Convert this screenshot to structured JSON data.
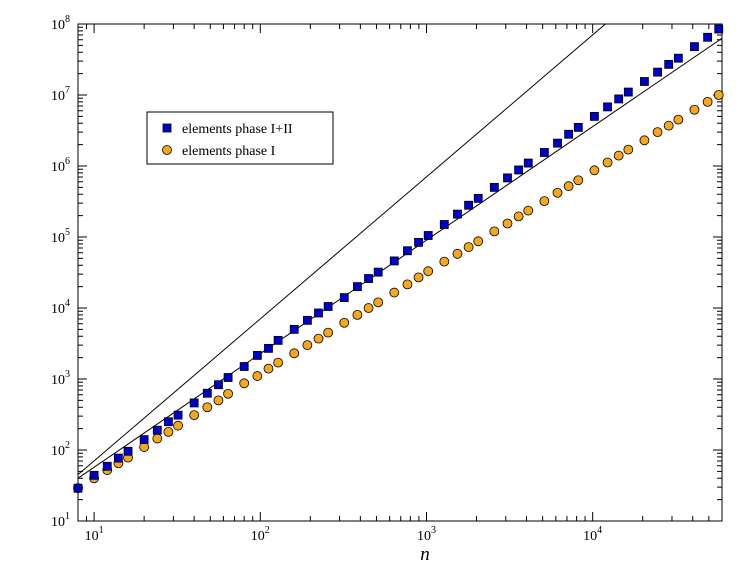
{
  "chart_data": {
    "type": "scatter",
    "title": "",
    "xlabel": "n",
    "ylabel": "",
    "xscale": "log",
    "yscale": "log",
    "xlim": [
      8,
      60000
    ],
    "ylim": [
      10,
      100000000
    ],
    "grid": false,
    "legend_position": "upper-left",
    "x_major_ticks": [
      {
        "value": 10,
        "base": "10",
        "exp": "1"
      },
      {
        "value": 100,
        "base": "10",
        "exp": "2"
      },
      {
        "value": 1000,
        "base": "10",
        "exp": "3"
      },
      {
        "value": 10000,
        "base": "10",
        "exp": "4"
      }
    ],
    "y_major_ticks": [
      {
        "value": 10,
        "base": "10",
        "exp": "1"
      },
      {
        "value": 100,
        "base": "10",
        "exp": "2"
      },
      {
        "value": 1000,
        "base": "10",
        "exp": "3"
      },
      {
        "value": 10000,
        "base": "10",
        "exp": "4"
      },
      {
        "value": 100000,
        "base": "10",
        "exp": "5"
      },
      {
        "value": 1000000,
        "base": "10",
        "exp": "6"
      },
      {
        "value": 10000000,
        "base": "10",
        "exp": "7"
      },
      {
        "value": 100000000,
        "base": "10",
        "exp": "8"
      }
    ],
    "series": [
      {
        "name": "elements phase I+II",
        "marker": "square",
        "color": "#0000cc",
        "x": [
          8,
          10,
          12,
          14,
          16,
          20,
          24,
          28,
          32,
          40,
          48,
          56,
          64,
          80,
          96,
          112,
          128,
          160,
          192,
          224,
          256,
          320,
          384,
          448,
          512,
          640,
          768,
          896,
          1024,
          1280,
          1536,
          1792,
          2048,
          2560,
          3072,
          3584,
          4096,
          5120,
          6144,
          7168,
          8192,
          10240,
          12288,
          14336,
          16384,
          20480,
          24576,
          28672,
          32768,
          40960,
          49152,
          57344
        ],
        "y": [
          29,
          44,
          59,
          77,
          96,
          140,
          190,
          250,
          310,
          460,
          630,
          830,
          1050,
          1500,
          2150,
          2700,
          3500,
          5000,
          6700,
          8500,
          10500,
          14000,
          20000,
          26000,
          32000,
          46000,
          64000,
          84000,
          105000,
          150000,
          210000,
          280000,
          350000,
          500000,
          680000,
          880000,
          1100000,
          1550000,
          2100000,
          2800000,
          3500000,
          5000000,
          6800000,
          8800000,
          11000000,
          15500000,
          21000000,
          27000000,
          33000000,
          48000000,
          65000000,
          85000000
        ]
      },
      {
        "name": "elements phase I",
        "marker": "circle",
        "color": "#f5a81c",
        "x": [
          8,
          10,
          12,
          14,
          16,
          20,
          24,
          28,
          32,
          40,
          48,
          56,
          64,
          80,
          96,
          112,
          128,
          160,
          192,
          224,
          256,
          320,
          384,
          448,
          512,
          640,
          768,
          896,
          1024,
          1280,
          1536,
          1792,
          2048,
          2560,
          3072,
          3584,
          4096,
          5120,
          6144,
          7168,
          8192,
          10240,
          12288,
          14336,
          16384,
          20480,
          24576,
          28672,
          32768,
          40960,
          49152,
          57344
        ],
        "y": [
          29,
          40,
          52,
          65,
          78,
          110,
          145,
          180,
          220,
          310,
          400,
          500,
          620,
          870,
          1100,
          1400,
          1700,
          2300,
          3000,
          3700,
          4500,
          6200,
          8000,
          10000,
          12000,
          16500,
          21500,
          27000,
          33000,
          45000,
          58000,
          72000,
          87000,
          120000,
          155000,
          195000,
          235000,
          320000,
          420000,
          520000,
          630000,
          870000,
          1120000,
          1400000,
          1700000,
          2300000,
          3000000,
          3700000,
          4500000,
          6200000,
          8000000,
          10000000
        ]
      }
    ],
    "fit_lines": [
      {
        "series": "elements phase I+II",
        "slope": 2.0,
        "x": [
          8,
          60000
        ],
        "y": [
          45,
          2530000000
        ]
      },
      {
        "series": "elements phase I",
        "slope": 1.6,
        "x": [
          8,
          60000
        ],
        "y": [
          40,
          63000000
        ]
      }
    ]
  }
}
